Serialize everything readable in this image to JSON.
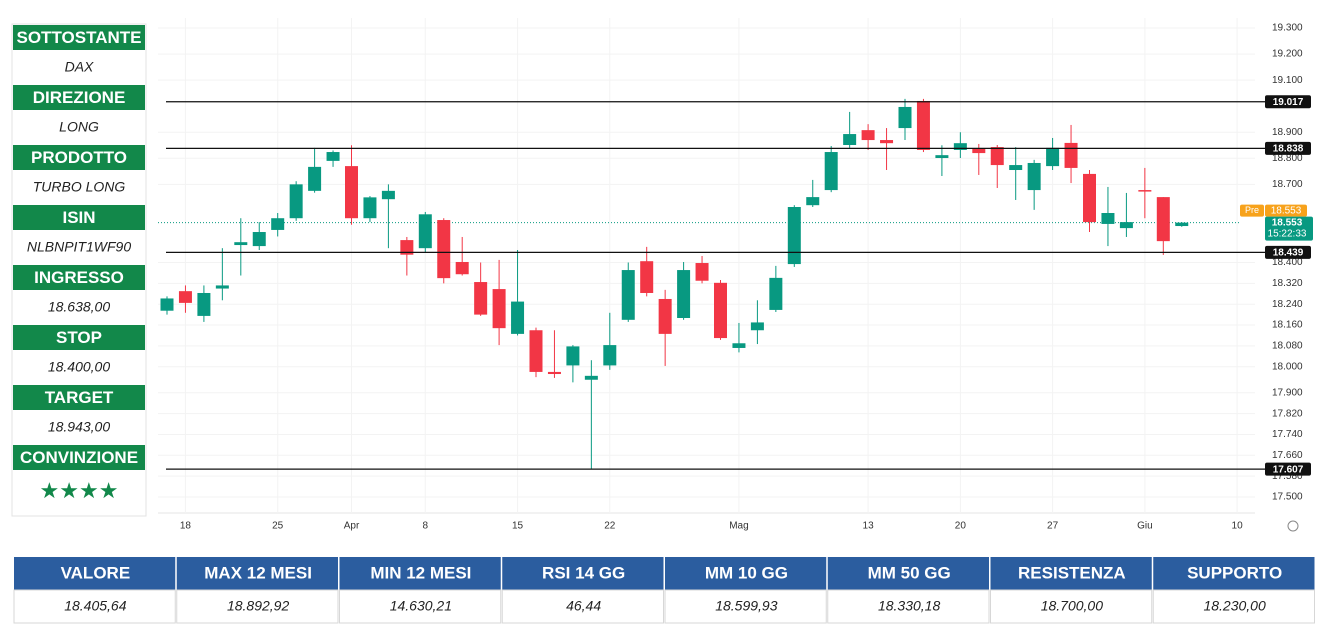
{
  "panel": [
    {
      "label": "SOTTOSTANTE",
      "value": "DAX"
    },
    {
      "label": "DIREZIONE",
      "value": "LONG"
    },
    {
      "label": "PRODOTTO",
      "value": "TURBO LONG"
    },
    {
      "label": "ISIN",
      "value": "NLBNPIT1WF90"
    },
    {
      "label": "INGRESSO",
      "value": "18.638,00"
    },
    {
      "label": "STOP",
      "value": "18.400,00"
    },
    {
      "label": "TARGET",
      "value": "18.943,00"
    },
    {
      "label": "CONVINZIONE",
      "value": "★★★★"
    }
  ],
  "chart_data": {
    "type": "candlestick",
    "categories": [
      null,
      "18",
      null,
      null,
      null,
      null,
      "25",
      null,
      null,
      null,
      "Apr",
      null,
      null,
      null,
      "8",
      null,
      null,
      null,
      null,
      "15",
      null,
      null,
      null,
      null,
      "22",
      null,
      null,
      null,
      null,
      null,
      null,
      "Mag",
      null,
      null,
      null,
      null,
      null,
      null,
      "13",
      null,
      null,
      null,
      null,
      "20",
      null,
      null,
      null,
      null,
      "27",
      null,
      null,
      null,
      null,
      "Giu",
      null,
      null,
      null,
      null,
      "10"
    ],
    "open": [
      18215,
      18290,
      18195,
      18300,
      18467,
      18463,
      18525,
      18570,
      18675,
      18790,
      18770,
      18570,
      18643,
      18486,
      18455,
      18563,
      18402,
      18325,
      18298,
      18126,
      18140,
      17980,
      18005,
      17950,
      18005,
      18180,
      18405,
      18260,
      18187,
      18398,
      18322,
      18072,
      18140,
      18218,
      18394,
      18620,
      18678,
      18851,
      18908,
      18870,
      18916,
      19020,
      18801,
      18832,
      18836,
      18843,
      18755,
      18678,
      18770,
      18859,
      18740,
      18548,
      18532,
      18678,
      18651,
      18540,
      null,
      null,
      null
    ],
    "high": [
      18270,
      18312,
      18312,
      18455,
      18570,
      18555,
      18590,
      18712,
      18840,
      18830,
      18850,
      18655,
      18700,
      18498,
      18594,
      18570,
      18498,
      18400,
      18410,
      18448,
      18150,
      18140,
      18083,
      18025,
      18207,
      18400,
      18460,
      18295,
      18402,
      18425,
      18333,
      18168,
      18255,
      18387,
      18620,
      18717,
      18847,
      18978,
      18931,
      18916,
      19028,
      19028,
      18850,
      18900,
      18855,
      18851,
      18843,
      18794,
      18878,
      18928,
      18755,
      18690,
      18667,
      18763,
      18651,
      18555,
      null,
      null,
      null
    ],
    "low": [
      18200,
      18207,
      18172,
      18255,
      18350,
      18448,
      18500,
      18560,
      18668,
      18767,
      18545,
      18555,
      18455,
      18350,
      18440,
      18320,
      18350,
      18195,
      18083,
      18120,
      17960,
      17957,
      17940,
      17607,
      17988,
      18172,
      18270,
      18003,
      18180,
      18320,
      18103,
      18055,
      18087,
      18210,
      18383,
      18613,
      18670,
      18840,
      18832,
      18755,
      18870,
      18824,
      18732,
      18801,
      18736,
      18686,
      18640,
      18602,
      18755,
      18705,
      18517,
      18463,
      18498,
      18570,
      18429,
      18537,
      null,
      null,
      null
    ],
    "close": [
      18262,
      18245,
      18283,
      18312,
      18478,
      18517,
      18570,
      18700,
      18767,
      18824,
      18570,
      18650,
      18675,
      18430,
      18585,
      18340,
      18355,
      18200,
      18148,
      18250,
      17980,
      17972,
      18078,
      17965,
      18083,
      18371,
      18283,
      18126,
      18371,
      18330,
      18110,
      18090,
      18170,
      18341,
      18613,
      18651,
      18824,
      18893,
      18870,
      18858,
      18997,
      18832,
      18812,
      18858,
      18820,
      18774,
      18774,
      18782,
      18840,
      18763,
      18555,
      18590,
      18555,
      18674,
      18482,
      18553,
      null,
      null,
      null
    ],
    "up_color": "#089981",
    "down_color": "#f23645",
    "ylim": [
      17480,
      19330
    ],
    "yticks": [
      {
        "value": 19300,
        "label": "19.300"
      },
      {
        "value": 19200,
        "label": "19.200"
      },
      {
        "value": 19100,
        "label": "19.100"
      },
      {
        "value": 18900,
        "label": "18.900"
      },
      {
        "value": 18800,
        "label": "18.800"
      },
      {
        "value": 18700,
        "label": "18.700"
      },
      {
        "value": 18400,
        "label": "18.400"
      },
      {
        "value": 18320,
        "label": "18.320"
      },
      {
        "value": 18240,
        "label": "18.240"
      },
      {
        "value": 18160,
        "label": "18.160"
      },
      {
        "value": 18080,
        "label": "18.080"
      },
      {
        "value": 18000,
        "label": "18.000"
      },
      {
        "value": 17900,
        "label": "17.900"
      },
      {
        "value": 17820,
        "label": "17.820"
      },
      {
        "value": 17740,
        "label": "17.740"
      },
      {
        "value": 17660,
        "label": "17.660"
      },
      {
        "value": 17580,
        "label": "17.580"
      },
      {
        "value": 17500,
        "label": "17.500"
      }
    ],
    "levels": [
      {
        "value": 19017,
        "label": "19.017"
      },
      {
        "value": 18838,
        "label": "18.838"
      },
      {
        "value": 18439,
        "label": "18.439"
      },
      {
        "value": 17607,
        "label": "17.607"
      }
    ],
    "last_price": {
      "value": 18553,
      "label": "18.553",
      "time": "15:22:33",
      "color": "#089981"
    },
    "premarket": {
      "label": "Pre",
      "value": 18553,
      "value_label": "18.553",
      "color": "#f7a21b"
    }
  },
  "table": {
    "headers": [
      "VALORE",
      "MAX 12 MESI",
      "MIN 12 MESI",
      "RSI 14 GG",
      "MM 10 GG",
      "MM 50 GG",
      "RESISTENZA",
      "SUPPORTO"
    ],
    "rows": [
      [
        "18.405,64",
        "18.892,92",
        "14.630,21",
        "46,44",
        "18.599,93",
        "18.330,18",
        "18.700,00",
        "18.230,00"
      ]
    ]
  }
}
